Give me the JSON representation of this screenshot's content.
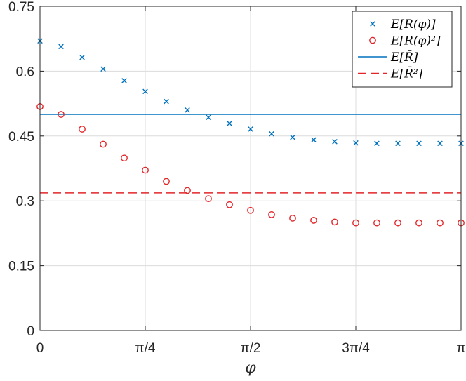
{
  "chart_data": {
    "type": "scatter",
    "xlabel": "φ",
    "ylabel": "",
    "xlim": [
      0,
      3.14159
    ],
    "ylim": [
      0,
      0.75
    ],
    "grid": true,
    "legend_position": "top-right",
    "x_ticks": [
      {
        "value": 0,
        "label": "0"
      },
      {
        "value": 0.785398,
        "label": "π/4"
      },
      {
        "value": 1.570796,
        "label": "π/2"
      },
      {
        "value": 2.356194,
        "label": "3π/4"
      },
      {
        "value": 3.141593,
        "label": "π"
      }
    ],
    "y_ticks": [
      {
        "value": 0,
        "label": "0"
      },
      {
        "value": 0.15,
        "label": "0.15"
      },
      {
        "value": 0.3,
        "label": "0.3"
      },
      {
        "value": 0.45,
        "label": "0.45"
      },
      {
        "value": 0.6,
        "label": "0.6"
      },
      {
        "value": 0.75,
        "label": "0.75"
      }
    ],
    "x": [
      0,
      0.15708,
      0.31416,
      0.47124,
      0.62832,
      0.7854,
      0.94248,
      1.09956,
      1.25664,
      1.41372,
      1.5708,
      1.72788,
      1.88496,
      2.04204,
      2.19911,
      2.35619,
      2.51327,
      2.67035,
      2.82743,
      2.98451,
      3.14159
    ],
    "series": [
      {
        "name": "E[R(φ)]",
        "marker": "x",
        "color": "#0072BD",
        "values": [
          0.67,
          0.657,
          0.632,
          0.605,
          0.578,
          0.553,
          0.53,
          0.51,
          0.493,
          0.479,
          0.466,
          0.455,
          0.447,
          0.441,
          0.437,
          0.434,
          0.433,
          0.433,
          0.433,
          0.433,
          0.433
        ]
      },
      {
        "name": "E[R(φ)²]",
        "marker": "o",
        "color": "#E3262A",
        "values": [
          0.518,
          0.5,
          0.466,
          0.431,
          0.399,
          0.371,
          0.345,
          0.324,
          0.305,
          0.291,
          0.278,
          0.268,
          0.26,
          0.255,
          0.251,
          0.249,
          0.249,
          0.249,
          0.249,
          0.249,
          0.249
        ]
      },
      {
        "name": "E[R̄]",
        "line": "solid",
        "color": "#0072BD",
        "constant": 0.5
      },
      {
        "name": "E[R̄²]",
        "line": "dashed",
        "color": "#E3262A",
        "constant": 0.3183
      }
    ]
  }
}
